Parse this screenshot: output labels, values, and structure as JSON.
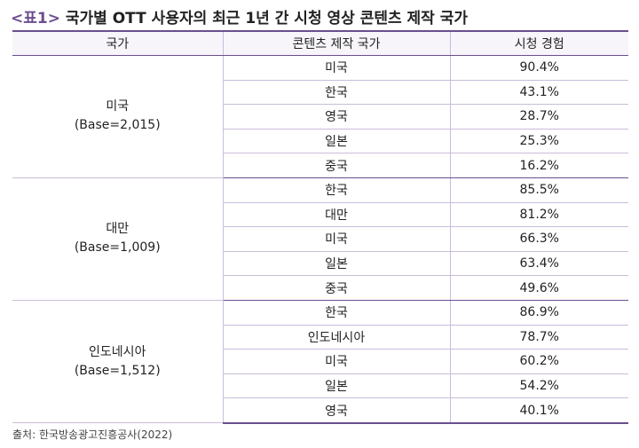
{
  "title": {
    "tag": "<표1>",
    "text": "국가별 OTT 사용자의 최근 1년 간 시청 영상 콘텐츠 제작 국가"
  },
  "table": {
    "headers": [
      "국가",
      "콘텐츠 제작 국가",
      "시청 경험"
    ],
    "groups": [
      {
        "country": "미국",
        "base": "(Base=2,015)",
        "rows": [
          {
            "origin": "미국",
            "value": "90.4%"
          },
          {
            "origin": "한국",
            "value": "43.1%"
          },
          {
            "origin": "영국",
            "value": "28.7%"
          },
          {
            "origin": "일본",
            "value": "25.3%"
          },
          {
            "origin": "중국",
            "value": "16.2%"
          }
        ]
      },
      {
        "country": "대만",
        "base": "(Base=1,009)",
        "rows": [
          {
            "origin": "한국",
            "value": "85.5%"
          },
          {
            "origin": "대만",
            "value": "81.2%"
          },
          {
            "origin": "미국",
            "value": "66.3%"
          },
          {
            "origin": "일본",
            "value": "63.4%"
          },
          {
            "origin": "중국",
            "value": "49.6%"
          }
        ]
      },
      {
        "country": "인도네시아",
        "base": "(Base=1,512)",
        "rows": [
          {
            "origin": "한국",
            "value": "86.9%"
          },
          {
            "origin": "인도네시아",
            "value": "78.7%"
          },
          {
            "origin": "미국",
            "value": "60.2%"
          },
          {
            "origin": "일본",
            "value": "54.2%"
          },
          {
            "origin": "영국",
            "value": "40.1%"
          }
        ]
      }
    ]
  },
  "source": "출처: 한국방송광고진흥공사(2022)",
  "colors": {
    "accent": "#6b4e8e",
    "rule": "#c9bdd9",
    "header_bg": "#f7f5fa"
  }
}
